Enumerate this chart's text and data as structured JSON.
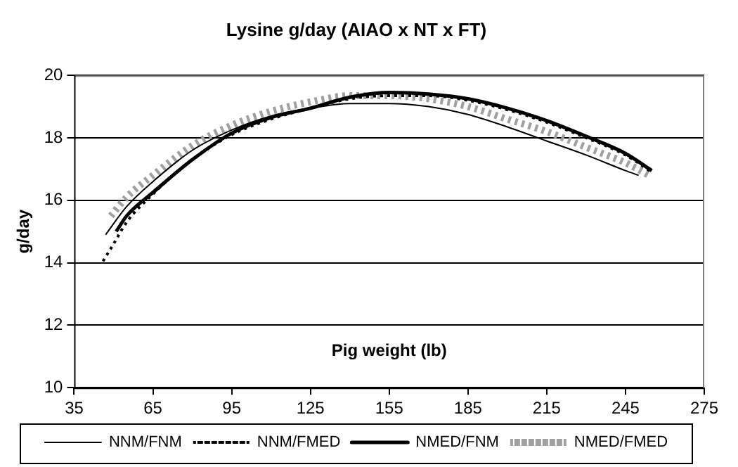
{
  "chart_data": {
    "type": "line",
    "title": "Lysine g/day (AIAO x NT x FT)",
    "xlabel": "Pig weight (lb)",
    "ylabel": "g/day",
    "xlim": [
      35,
      275
    ],
    "xticks": [
      35,
      65,
      95,
      125,
      155,
      185,
      215,
      245,
      275
    ],
    "ylim": [
      10,
      20
    ],
    "yticks": [
      10,
      12,
      14,
      16,
      18,
      20
    ],
    "grid": "y",
    "legend": "bottom",
    "marker": "none",
    "series": [
      {
        "name": "NNM/FNM",
        "color": "#000000",
        "line_style": "solid",
        "x": [
          47,
          55,
          65,
          80,
          95,
          110,
          125,
          140,
          155,
          170,
          185,
          200,
          215,
          230,
          245,
          250
        ],
        "values": [
          14.9,
          15.8,
          16.6,
          17.6,
          18.25,
          18.7,
          18.95,
          19.1,
          19.1,
          19.0,
          18.75,
          18.35,
          17.9,
          17.45,
          16.95,
          16.8
        ]
      },
      {
        "name": "NNM/FMED",
        "color": "#000000",
        "line_style": "dotted",
        "x": [
          46,
          50,
          55,
          65,
          80,
          95,
          110,
          125,
          140,
          155,
          170,
          185,
          200,
          215,
          230,
          245,
          255
        ],
        "values": [
          14.05,
          14.6,
          15.3,
          16.2,
          17.3,
          18.1,
          18.6,
          18.95,
          19.25,
          19.35,
          19.35,
          19.2,
          18.9,
          18.5,
          18.0,
          17.45,
          16.9
        ]
      },
      {
        "name": "NMED/FNM",
        "color": "#000000",
        "line_style": "solid",
        "x": [
          51,
          55,
          65,
          80,
          95,
          110,
          125,
          140,
          155,
          170,
          185,
          200,
          215,
          230,
          245,
          255
        ],
        "values": [
          15.0,
          15.5,
          16.25,
          17.3,
          18.15,
          18.65,
          18.95,
          19.3,
          19.45,
          19.4,
          19.25,
          18.95,
          18.55,
          18.05,
          17.5,
          16.95
        ]
      },
      {
        "name": "NMED/FMED",
        "color": "#a0a0a0",
        "line_style": "dotted",
        "x": [
          49,
          55,
          65,
          80,
          95,
          110,
          125,
          140,
          155,
          170,
          185,
          200,
          215,
          230,
          245,
          254
        ],
        "values": [
          15.5,
          16.1,
          16.8,
          17.75,
          18.4,
          18.85,
          19.15,
          19.35,
          19.35,
          19.25,
          19.0,
          18.6,
          18.2,
          17.7,
          17.2,
          16.8
        ]
      }
    ]
  }
}
